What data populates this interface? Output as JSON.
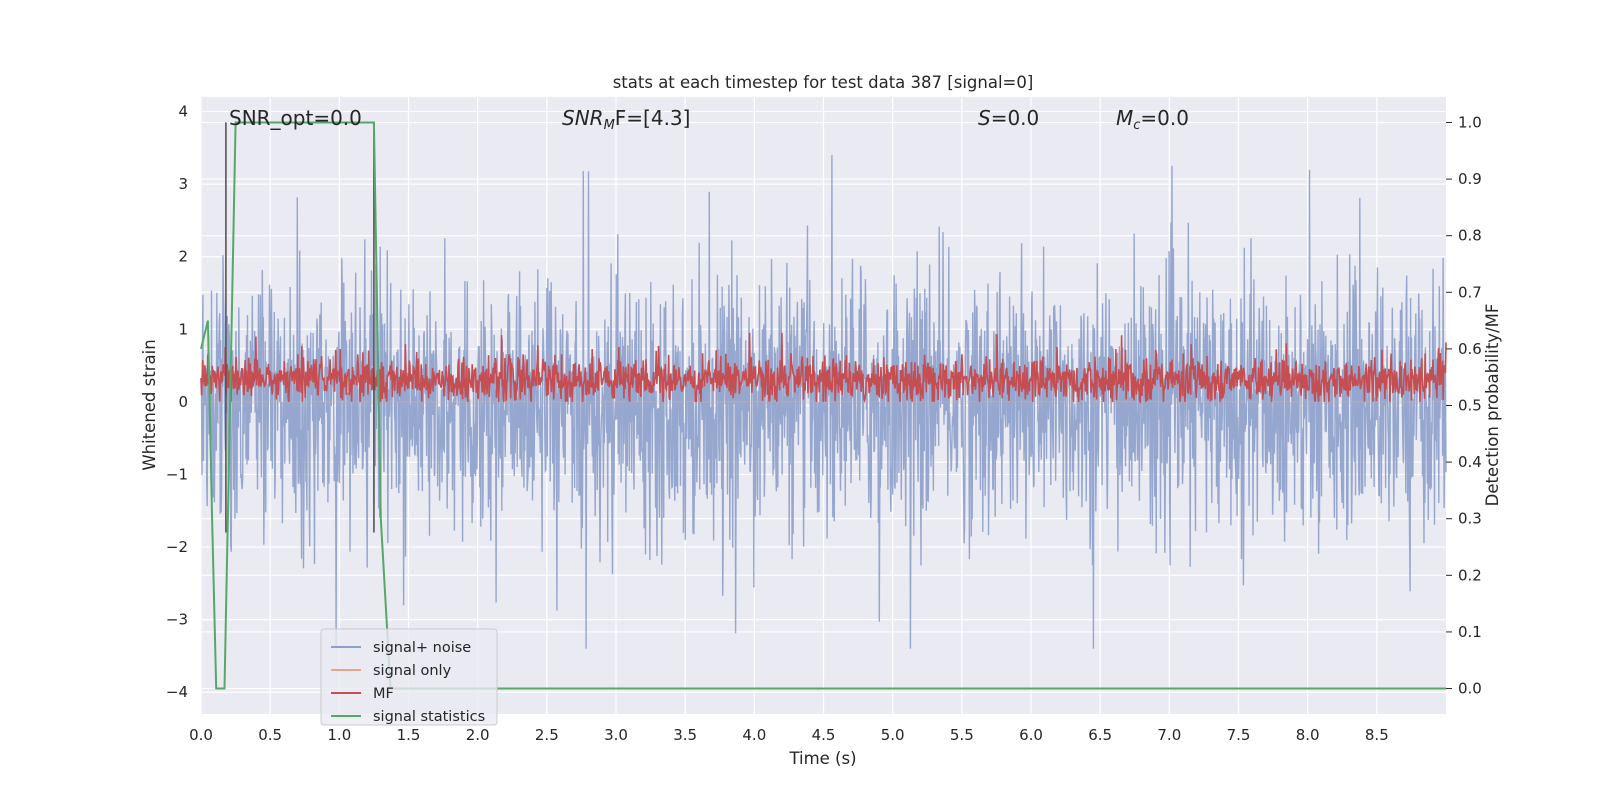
{
  "chart_data": {
    "type": "line",
    "title": "stats at each timestep for test data 387 [signal=0]",
    "xlabel": "Time (s)",
    "ylabel": "Whitened strain",
    "y2label": "Detection probability/MF",
    "xlim": [
      0.0,
      9.0
    ],
    "ylim": [
      -4.3,
      4.2
    ],
    "y2lim": [
      -0.045,
      1.045
    ],
    "xticks": [
      0.0,
      0.5,
      1.0,
      1.5,
      2.0,
      2.5,
      3.0,
      3.5,
      4.0,
      4.5,
      5.0,
      5.5,
      6.0,
      6.5,
      7.0,
      7.5,
      8.0,
      8.5
    ],
    "xtick_labels": [
      "0.0",
      "0.5",
      "1.0",
      "1.5",
      "2.0",
      "2.5",
      "3.0",
      "3.5",
      "4.0",
      "4.5",
      "5.0",
      "5.5",
      "6.0",
      "6.5",
      "7.0",
      "7.5",
      "8.0",
      "8.5"
    ],
    "yticks": [
      4,
      3,
      2,
      1,
      0,
      -1,
      -2,
      -3,
      -4
    ],
    "ytick_labels": [
      "4",
      "3",
      "2",
      "1",
      "0",
      "−1",
      "−2",
      "−3",
      "−4"
    ],
    "y2ticks": [
      1.0,
      0.9,
      0.8,
      0.7,
      0.6,
      0.5,
      0.4,
      0.3,
      0.2,
      0.1,
      0.0
    ],
    "y2tick_labels": [
      "1.0",
      "0.9",
      "0.8",
      "0.7",
      "0.6",
      "0.5",
      "0.4",
      "0.3",
      "0.2",
      "0.1",
      "0.0"
    ],
    "grid": true,
    "annotations": {
      "snr_opt": "SNR_opt=0.0",
      "snr_mf_base": "SNR",
      "snr_mf_sub": "M",
      "snr_mf_rest": "F=[4.3]",
      "s_label": "S",
      "s_value": "=0.0",
      "mc_base": "M",
      "mc_sub": "c",
      "mc_value": "=0.0"
    },
    "vlines_x": [
      0.18,
      1.25
    ],
    "series": [
      {
        "name": "signal+ noise",
        "color": "#8da0cb",
        "note": "whitened noise trace, amplitude mostly within ±2, peaks near ±3.4"
      },
      {
        "name": "signal only",
        "color": "#e8a58a",
        "values": "flat at 0"
      },
      {
        "name": "MF",
        "color": "#c44e52",
        "note": "matched-filter output, values roughly 0.0–0.9 on the strain axis"
      },
      {
        "name": "signal statistics",
        "color": "#55a868",
        "axis": "right",
        "x": [
          0.0,
          0.05,
          0.08,
          0.11,
          0.17,
          0.25,
          1.25,
          1.3,
          1.37,
          9.0
        ],
        "values": [
          0.6,
          0.65,
          0.3,
          0.0,
          0.0,
          1.0,
          1.0,
          0.3,
          0.0,
          0.0
        ]
      }
    ],
    "legend": {
      "placement": "lower-left",
      "items": [
        "signal+ noise",
        "signal only",
        "MF",
        "signal statistics"
      ]
    }
  }
}
